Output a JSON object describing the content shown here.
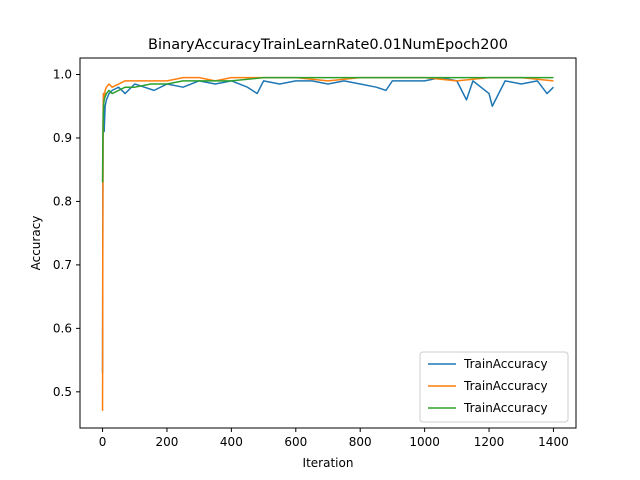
{
  "chart_data": {
    "type": "line",
    "title": "BinaryAccuracyTrainLearnRate0.01NumEpoch200",
    "xlabel": "Iteration",
    "ylabel": "Accuracy",
    "xlim": [
      -70,
      1470
    ],
    "ylim": [
      0.443,
      1.026
    ],
    "x_ticks": [
      0,
      200,
      400,
      600,
      800,
      1000,
      1200,
      1400
    ],
    "y_ticks": [
      0.5,
      0.6,
      0.7,
      0.8,
      0.9,
      1.0
    ],
    "y_tick_labels": [
      "0.5",
      "0.6",
      "0.7",
      "0.8",
      "0.9",
      "1.0"
    ],
    "legend_position": "lower-right",
    "grid": false,
    "series": [
      {
        "name": "TrainAccuracy",
        "color": "#1f77b4",
        "x": [
          0,
          1,
          2,
          3,
          5,
          8,
          12,
          20,
          30,
          50,
          70,
          100,
          130,
          160,
          200,
          250,
          300,
          350,
          400,
          450,
          480,
          500,
          550,
          600,
          650,
          700,
          750,
          800,
          850,
          880,
          900,
          950,
          1000,
          1050,
          1100,
          1130,
          1150,
          1200,
          1210,
          1250,
          1300,
          1350,
          1380,
          1400
        ],
        "y": [
          0.53,
          0.82,
          0.94,
          0.97,
          0.91,
          0.95,
          0.96,
          0.97,
          0.975,
          0.98,
          0.97,
          0.985,
          0.98,
          0.975,
          0.985,
          0.98,
          0.99,
          0.985,
          0.99,
          0.98,
          0.97,
          0.99,
          0.985,
          0.99,
          0.99,
          0.985,
          0.99,
          0.985,
          0.98,
          0.975,
          0.99,
          0.99,
          0.99,
          0.995,
          0.99,
          0.96,
          0.99,
          0.97,
          0.95,
          0.99,
          0.985,
          0.99,
          0.97,
          0.98
        ]
      },
      {
        "name": "TrainAccuracy",
        "color": "#ff7f0e",
        "x": [
          0,
          1,
          2,
          3,
          5,
          8,
          12,
          20,
          30,
          50,
          70,
          100,
          150,
          200,
          250,
          300,
          350,
          400,
          500,
          600,
          700,
          800,
          900,
          1000,
          1100,
          1200,
          1300,
          1400
        ],
        "y": [
          0.47,
          0.78,
          0.95,
          0.97,
          0.96,
          0.975,
          0.98,
          0.985,
          0.98,
          0.985,
          0.99,
          0.99,
          0.99,
          0.99,
          0.995,
          0.995,
          0.99,
          0.995,
          0.995,
          0.995,
          0.99,
          0.995,
          0.995,
          0.995,
          0.99,
          0.995,
          0.995,
          0.99
        ]
      },
      {
        "name": "TrainAccuracy",
        "color": "#2ca02c",
        "x": [
          0,
          1,
          2,
          3,
          5,
          8,
          12,
          20,
          30,
          50,
          70,
          100,
          150,
          200,
          250,
          300,
          350,
          400,
          500,
          600,
          700,
          800,
          900,
          1000,
          1100,
          1200,
          1300,
          1400
        ],
        "y": [
          0.83,
          0.9,
          0.93,
          0.95,
          0.96,
          0.965,
          0.97,
          0.975,
          0.97,
          0.975,
          0.98,
          0.98,
          0.985,
          0.985,
          0.99,
          0.99,
          0.99,
          0.99,
          0.995,
          0.995,
          0.995,
          0.995,
          0.995,
          0.995,
          0.995,
          0.995,
          0.995,
          0.995
        ]
      }
    ]
  }
}
